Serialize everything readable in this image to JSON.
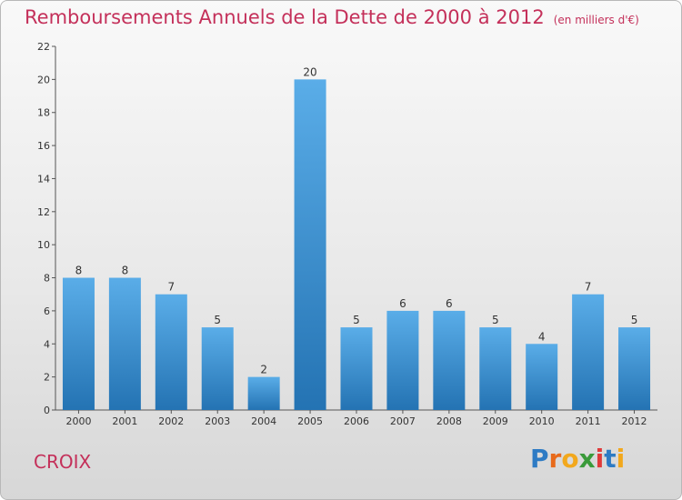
{
  "title": "Remboursements Annuels de la Dette de 2000 à 2012",
  "subtitle": "(en milliers d'€)",
  "commune": "CROIX",
  "logo": "Proxiti",
  "colors": {
    "title": "#c4305a",
    "bar_top": "#5aade8",
    "bar_bottom": "#2473b3"
  },
  "chart_data": {
    "type": "bar",
    "title": "Remboursements Annuels de la Dette de 2000 à 2012",
    "subtitle": "(en milliers d'€)",
    "xlabel": "",
    "ylabel": "",
    "categories": [
      "2000",
      "2001",
      "2002",
      "2003",
      "2004",
      "2005",
      "2006",
      "2007",
      "2008",
      "2009",
      "2010",
      "2011",
      "2012"
    ],
    "values": [
      8,
      8,
      7,
      5,
      2,
      20,
      5,
      6,
      6,
      5,
      4,
      7,
      5
    ],
    "ylim": [
      0,
      22
    ],
    "yticks": [
      0,
      2,
      4,
      6,
      8,
      10,
      12,
      14,
      16,
      18,
      20,
      22
    ],
    "grid": false,
    "data_labels": true
  }
}
